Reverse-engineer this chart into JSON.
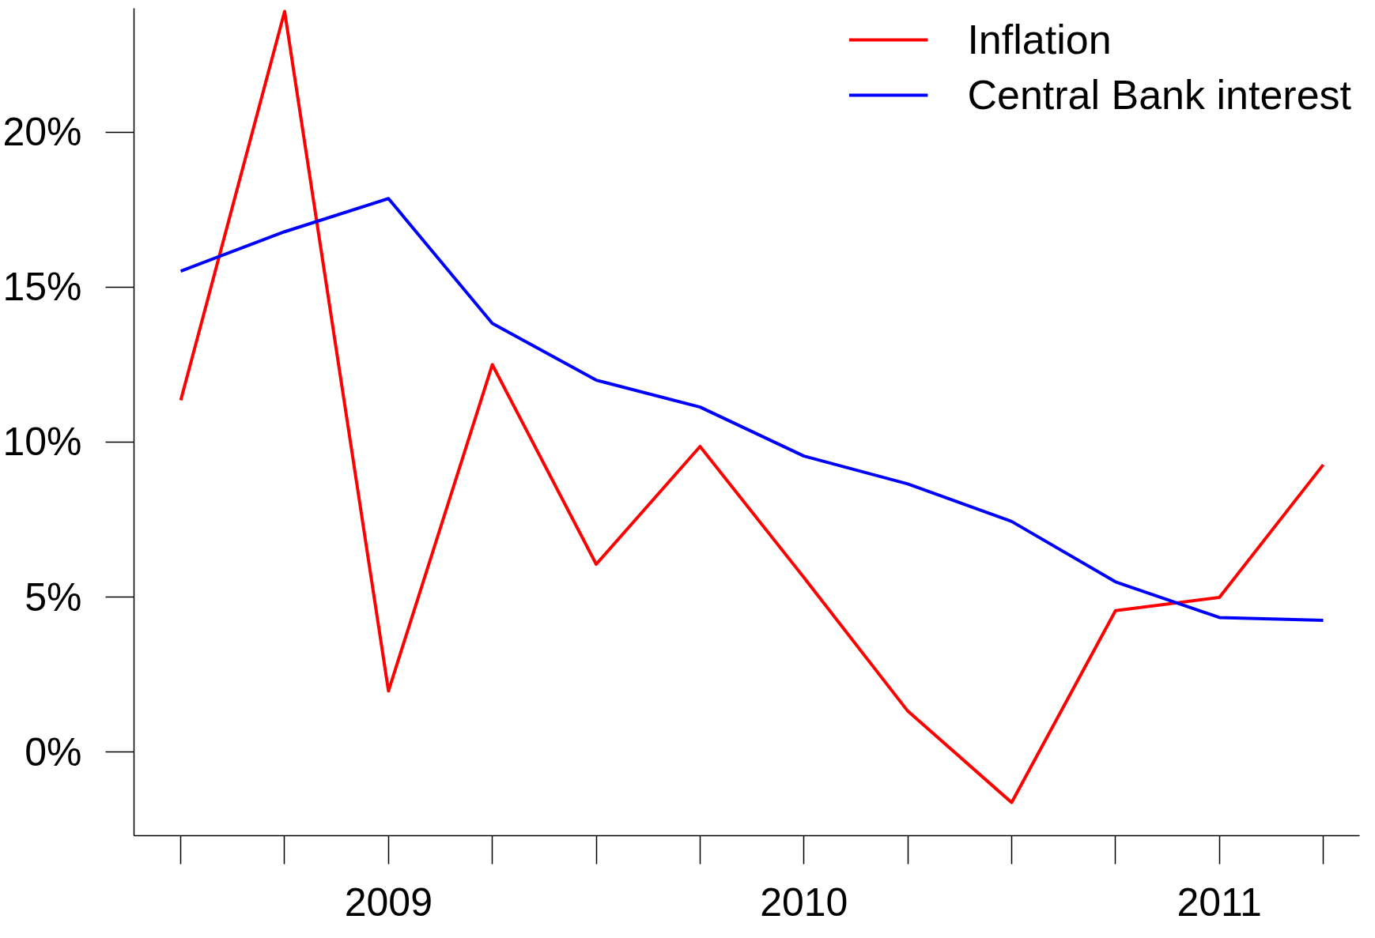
{
  "chart_data": {
    "type": "line",
    "categories": [
      null,
      null,
      "2009",
      null,
      null,
      null,
      "2010",
      null,
      null,
      null,
      "2011",
      null
    ],
    "series": [
      {
        "name": "Inflation",
        "color": "#ff0000",
        "values": [
          11.35,
          23.9,
          1.97,
          12.5,
          6.06,
          9.86,
          5.63,
          1.32,
          -1.63,
          4.56,
          4.99,
          9.27
        ]
      },
      {
        "name": "Central Bank interest",
        "color": "#0000ff",
        "values": [
          15.52,
          16.79,
          17.86,
          13.83,
          12.0,
          11.13,
          9.55,
          8.65,
          7.44,
          5.49,
          4.34,
          4.25
        ]
      }
    ],
    "ylim": [
      -2.7,
      24
    ],
    "yticks": [
      {
        "value": 0,
        "label": "0%"
      },
      {
        "value": 5,
        "label": "5%"
      },
      {
        "value": 10,
        "label": "10%"
      },
      {
        "value": 15,
        "label": "15%"
      },
      {
        "value": 20,
        "label": "20%"
      }
    ],
    "grid": false,
    "legend": "top right",
    "marker": "none",
    "line_style": "solid"
  }
}
